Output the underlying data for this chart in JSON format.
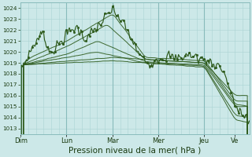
{
  "background_color": "#cce8e8",
  "grid_color_minor": "#aad4d4",
  "grid_color_major": "#88bbbb",
  "line_color": "#2d5a1b",
  "ylim": [
    1012.5,
    1024.5
  ],
  "yticks": [
    1013,
    1014,
    1015,
    1016,
    1017,
    1018,
    1019,
    1020,
    1021,
    1022,
    1023,
    1024
  ],
  "xlabel": "Pression niveau de la mer( hPa )",
  "xlabel_fontsize": 7.5,
  "xtick_labels": [
    "Dim",
    "Lun",
    "Mar",
    "Mer",
    "Jeu",
    "Ve"
  ],
  "xtick_positions": [
    0,
    48,
    96,
    144,
    192,
    224
  ],
  "total_points": 240,
  "day_lines": [
    48,
    96,
    144,
    192
  ],
  "figsize": [
    3.2,
    2.0
  ],
  "dpi": 100
}
